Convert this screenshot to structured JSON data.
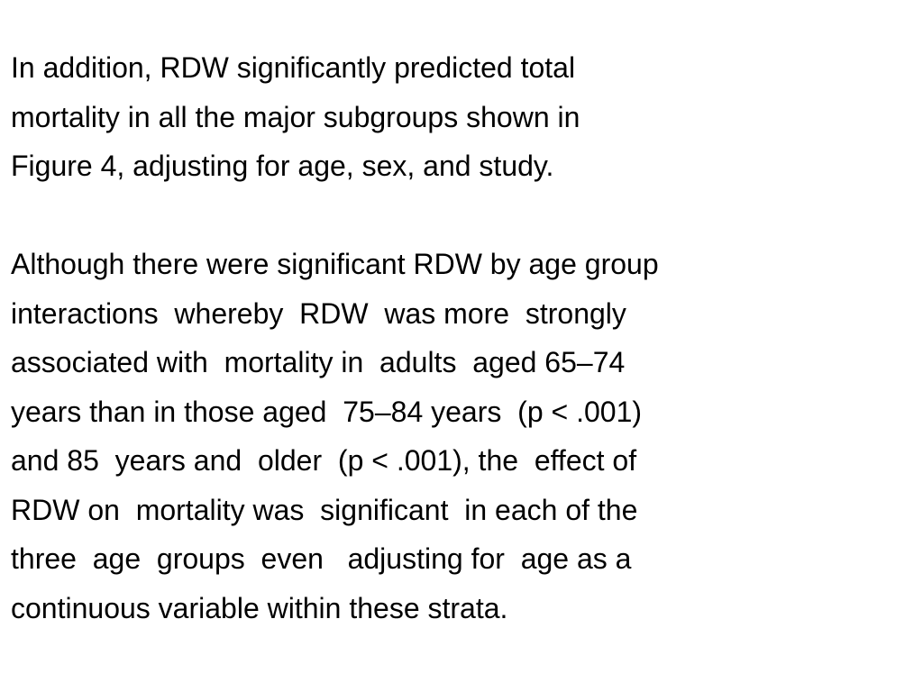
{
  "paragraphs": [
    {
      "lines": [
        "In addition, RDW significantly predicted total",
        "mortality in all the major subgroups shown in",
        "Figure 4, adjusting for age, sex, and study."
      ]
    },
    {
      "lines": [
        "Although there were significant RDW by age group",
        "interactions  whereby  RDW  was more  strongly",
        "associated with  mortality in  adults  aged 65–74",
        "years than in those aged  75–84 years  (p < .001)",
        "and 85  years and  older  (p < .001), the  effect of",
        "RDW on  mortality was  significant  in each of the",
        "three  age  groups  even   adjusting for  age as a",
        "continuous variable within these strata."
      ]
    }
  ]
}
